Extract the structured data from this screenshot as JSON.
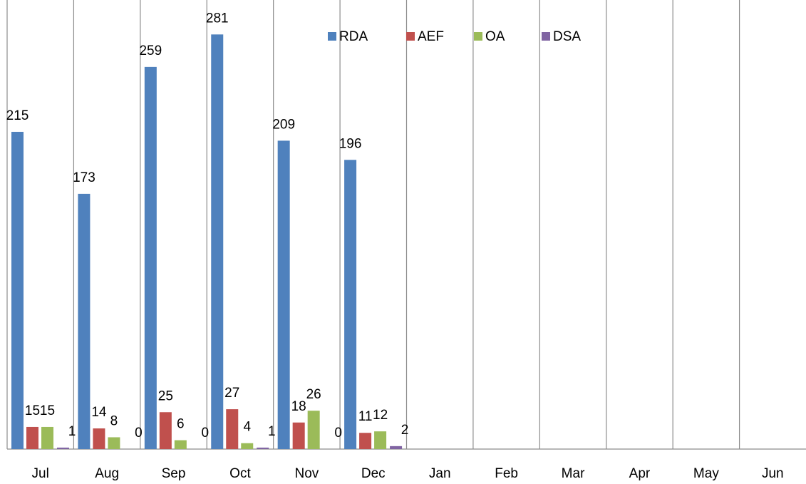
{
  "chart_data": {
    "type": "bar",
    "categories": [
      "Jul",
      "Aug",
      "Sep",
      "Oct",
      "Nov",
      "Dec",
      "Jan",
      "Feb",
      "Mar",
      "Apr",
      "May",
      "Jun"
    ],
    "series": [
      {
        "name": "RDA",
        "color": "#4f81bd",
        "values": [
          215,
          173,
          259,
          281,
          209,
          196,
          null,
          null,
          null,
          null,
          null,
          null
        ]
      },
      {
        "name": "AEF",
        "color": "#c0504d",
        "values": [
          15,
          14,
          25,
          27,
          18,
          11,
          null,
          null,
          null,
          null,
          null,
          null
        ]
      },
      {
        "name": "OA",
        "color": "#9bbb59",
        "values": [
          15,
          8,
          6,
          4,
          26,
          12,
          null,
          null,
          null,
          null,
          null,
          null
        ]
      },
      {
        "name": "DSA",
        "color": "#8064a2",
        "values": [
          1,
          0,
          0,
          1,
          0,
          2,
          null,
          null,
          null,
          null,
          null,
          null
        ]
      }
    ],
    "ylim": [
      0,
      300
    ],
    "grid": true,
    "legend": "top"
  }
}
